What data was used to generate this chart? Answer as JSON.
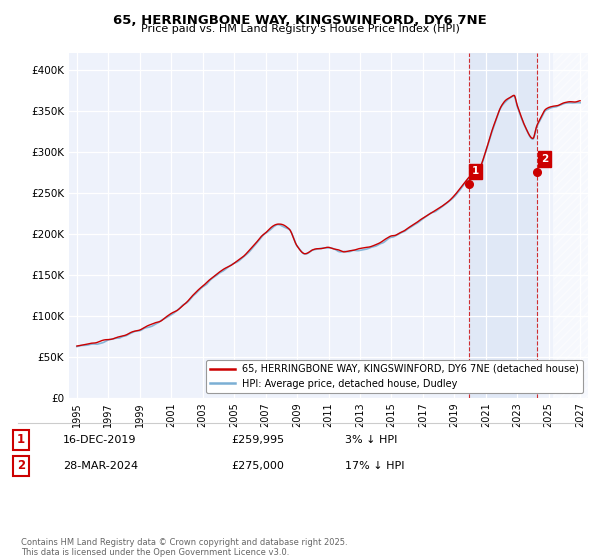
{
  "title": "65, HERRINGBONE WAY, KINGSWINFORD, DY6 7NE",
  "subtitle": "Price paid vs. HM Land Registry's House Price Index (HPI)",
  "legend_line1": "65, HERRINGBONE WAY, KINGSWINFORD, DY6 7NE (detached house)",
  "legend_line2": "HPI: Average price, detached house, Dudley",
  "annotation1_date": "16-DEC-2019",
  "annotation1_price": "£259,995",
  "annotation1_pct": "3% ↓ HPI",
  "annotation2_date": "28-MAR-2024",
  "annotation2_price": "£275,000",
  "annotation2_pct": "17% ↓ HPI",
  "copyright": "Contains HM Land Registry data © Crown copyright and database right 2025.\nThis data is licensed under the Open Government Licence v3.0.",
  "hpi_color": "#7bafd4",
  "price_color": "#cc0000",
  "marker1_x": 2019.96,
  "marker2_x": 2024.24,
  "marker1_price": 259995,
  "marker2_price": 275000,
  "vline1_x": 2019.96,
  "vline2_x": 2024.24,
  "ylim": [
    0,
    420000
  ],
  "xlim_left": 1994.5,
  "xlim_right": 2027.5,
  "background_plot": "#eef2fb",
  "background_highlight": "#dde6f5",
  "hatched_region_start": 2025.3,
  "hatched_region_end": 2027.5,
  "yticks": [
    0,
    50000,
    100000,
    150000,
    200000,
    250000,
    300000,
    350000,
    400000
  ],
  "xtick_start": 1995,
  "xtick_end": 2028,
  "xtick_step": 2
}
